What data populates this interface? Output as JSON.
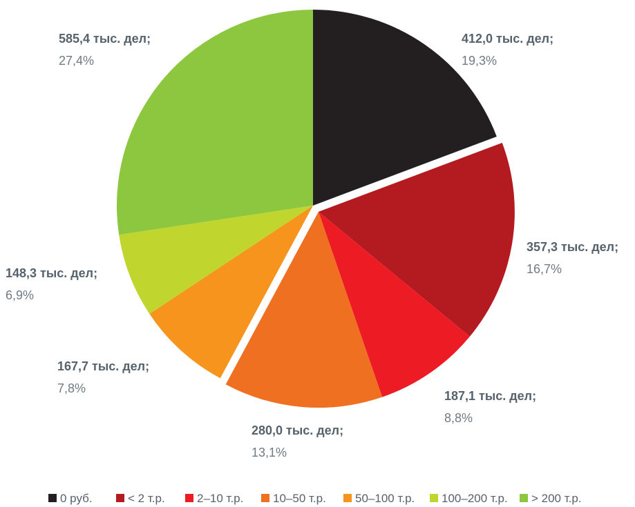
{
  "chart_data": {
    "type": "pie",
    "categories": [
      "0 руб.",
      "< 2 т.р.",
      "2–10 т.р.",
      "10–50 т.р.",
      "50–100 т.р.",
      "100–200 т.р.",
      "> 200 т.р."
    ],
    "values": [
      412.0,
      357.3,
      187.1,
      280.0,
      167.7,
      148.3,
      585.4
    ],
    "value_labels": [
      "412,0 тыс. дел;",
      "357,3 тыс. дел;",
      "187,1 тыс. дел;",
      "280,0 тыс. дел;",
      "167,7 тыс. дел;",
      "148,3 тыс. дел;",
      "585,4 тыс. дел;"
    ],
    "percents": [
      19.3,
      16.7,
      8.8,
      13.1,
      7.8,
      6.9,
      27.4
    ],
    "percent_labels": [
      "19,3%",
      "16,7%",
      "8,8%",
      "13,1%",
      "7,8%",
      "6,9%",
      "27,4%"
    ],
    "colors": [
      "#231f20",
      "#b31b21",
      "#ed1c24",
      "#f07022",
      "#f7941d",
      "#c0d62f",
      "#8dc63f"
    ],
    "legend": "bottom"
  }
}
